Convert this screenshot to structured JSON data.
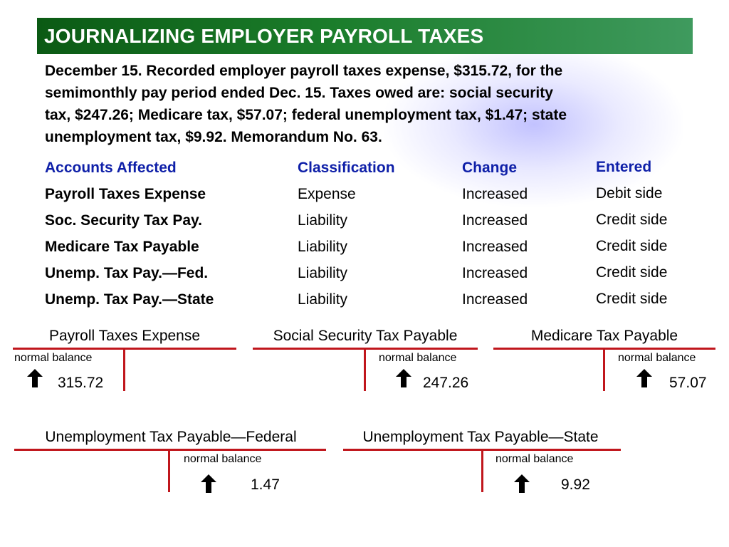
{
  "title": "JOURNALIZING EMPLOYER PAYROLL TAXES",
  "intro_lines": [
    "December 15. Recorded employer payroll taxes expense, $315.72, for the",
    "semimonthly pay period ended Dec. 15. Taxes owed are: social security",
    "tax, $247.26; Medicare tax, $57.07; federal unemployment tax, $1.47; state",
    "unemployment tax, $9.92. Memorandum No. 63."
  ],
  "table": {
    "headers": [
      "Accounts Affected",
      "Classification",
      "Change",
      "Entered"
    ],
    "rows": [
      {
        "account": "Payroll Taxes Expense",
        "classification": "Expense",
        "change": "Increased",
        "entered": "Debit side"
      },
      {
        "account": "Soc. Security Tax Pay.",
        "classification": "Liability",
        "change": "Increased",
        "entered": "Credit side"
      },
      {
        "account": "Medicare Tax Payable",
        "classification": "Liability",
        "change": "Increased",
        "entered": "Credit side"
      },
      {
        "account": "Unemp. Tax Pay.—Fed.",
        "classification": "Liability",
        "change": "Increased",
        "entered": "Credit side"
      },
      {
        "account": "Unemp. Tax Pay.—State",
        "classification": "Liability",
        "change": "Increased",
        "entered": "Credit side"
      }
    ]
  },
  "t_accounts": [
    {
      "title": "Payroll Taxes Expense",
      "normal_balance_label": "normal balance",
      "amount": "315.72",
      "side": "debit"
    },
    {
      "title": "Social Security Tax Payable",
      "normal_balance_label": "normal balance",
      "amount": "247.26",
      "side": "credit"
    },
    {
      "title": "Medicare Tax Payable",
      "normal_balance_label": "normal balance",
      "amount": "57.07",
      "side": "credit"
    },
    {
      "title": "Unemployment Tax Payable—Federal",
      "normal_balance_label": "normal balance",
      "amount": "1.47",
      "side": "credit"
    },
    {
      "title": "Unemployment Tax Payable—State",
      "normal_balance_label": "normal balance",
      "amount": "9.92",
      "side": "credit"
    }
  ],
  "colors": {
    "title_bar": "#1b7d2b",
    "header_text": "#0e1fa8",
    "t_account_lines": "#c0161c"
  },
  "icons": {
    "increase": "up-arrow-icon"
  }
}
